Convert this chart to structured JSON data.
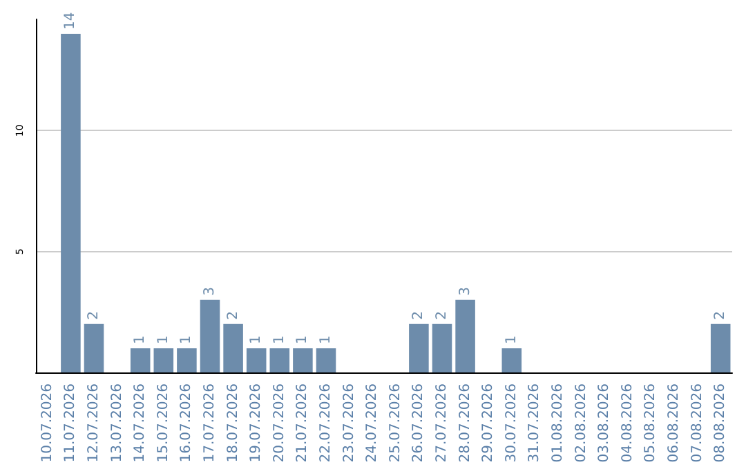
{
  "chart_data": {
    "type": "bar",
    "categories": [
      "10.07.2026",
      "11.07.2026",
      "12.07.2026",
      "13.07.2026",
      "14.07.2026",
      "15.07.2026",
      "16.07.2026",
      "17.07.2026",
      "18.07.2026",
      "19.07.2026",
      "20.07.2026",
      "21.07.2026",
      "22.07.2026",
      "23.07.2026",
      "24.07.2026",
      "25.07.2026",
      "26.07.2026",
      "27.07.2026",
      "28.07.2026",
      "29.07.2026",
      "30.07.2026",
      "31.07.2026",
      "01.08.2026",
      "02.08.2026",
      "03.08.2026",
      "04.08.2026",
      "05.08.2026",
      "06.08.2026",
      "07.08.2026",
      "08.08.2026"
    ],
    "values": [
      0,
      14,
      2,
      0,
      1,
      1,
      1,
      3,
      2,
      1,
      1,
      1,
      1,
      0,
      0,
      0,
      2,
      2,
      3,
      0,
      1,
      0,
      0,
      0,
      0,
      0,
      0,
      0,
      0,
      2
    ],
    "value_labels": [
      null,
      "14",
      "2",
      null,
      "1",
      "1",
      "1",
      "3",
      "2",
      "1",
      "1",
      "1",
      "1",
      null,
      null,
      null,
      "2",
      "2",
      "3",
      null,
      "1",
      null,
      null,
      null,
      null,
      null,
      null,
      null,
      null,
      "2"
    ],
    "color": "#6d8cab",
    "ylim": [
      0,
      14.6
    ],
    "yticks": [
      5,
      10
    ],
    "grid": "y"
  }
}
